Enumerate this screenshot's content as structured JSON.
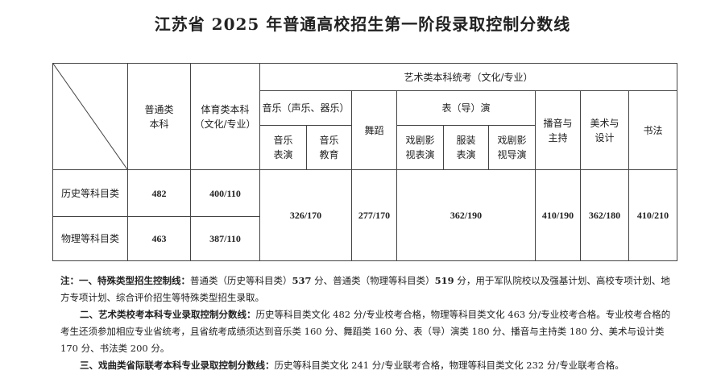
{
  "title": "江苏省 2025 年普通高校招生第一阶段录取控制分数线",
  "table": {
    "headers": {
      "regular": "普通类\n本科",
      "sports": "体育类本科\n（文化/专业）",
      "art": "艺术类本科统考（文化/专业）",
      "music": "音乐（声乐、器乐）",
      "music_performance": "音乐\n表演",
      "music_education": "音乐\n教育",
      "dance": "舞蹈",
      "acting": "表（导）演",
      "drama_film_acting": "戏剧影\n视表演",
      "fashion": "服装\n表演",
      "drama_film_directing": "戏剧影\n视导演",
      "broadcasting": "播音与\n主持",
      "fine_arts": "美术与\n设计",
      "calligraphy": "书法"
    },
    "rows": [
      {
        "category": "历史等科目类",
        "regular": 482,
        "sports": "400/110"
      },
      {
        "category": "物理等科目类",
        "regular": 463,
        "sports": "387/110"
      }
    ],
    "art_scores": {
      "music": "326/170",
      "dance": "277/170",
      "acting": "362/190",
      "broadcasting": "410/190",
      "fine_arts": "362/180",
      "calligraphy": "410/210"
    }
  },
  "notes": [
    [
      {
        "text": "注：一、特殊类型招生控制线：",
        "bold": true
      },
      {
        "text": "普通类（历史等科目类）",
        "bold": false
      },
      {
        "text": "537",
        "bold": true
      },
      {
        "text": " 分、普通类（物理等科目类）",
        "bold": false
      },
      {
        "text": "519",
        "bold": true
      },
      {
        "text": " 分，用于军队院校以及强基计划、高校专项计划、地方专项计划、综合评价招生等特殊类型招生录取。",
        "bold": false
      }
    ],
    [
      {
        "text": "二、艺术类校考本科专业录取控制分数线：",
        "bold": true
      },
      {
        "text": "历史等科目类文化 482 分/专业校考合格，物理等科目类文化 463 分/专业校考合格。专业校考合格的考生还须参加相应专业省统考，且省统考成绩须达到音乐类 160 分、舞蹈类 160 分、表（导）演类 180 分、播音与主持类 180 分、美术与设计类 170 分、书法类 200 分。",
        "bold": false
      }
    ],
    [
      {
        "text": "三、戏曲类省际联考本科专业录取控制分数线：",
        "bold": true
      },
      {
        "text": "历史等科目类文化 241 分/专业联考合格，物理等科目类文化 232 分/专业联考合格。",
        "bold": false
      }
    ]
  ]
}
